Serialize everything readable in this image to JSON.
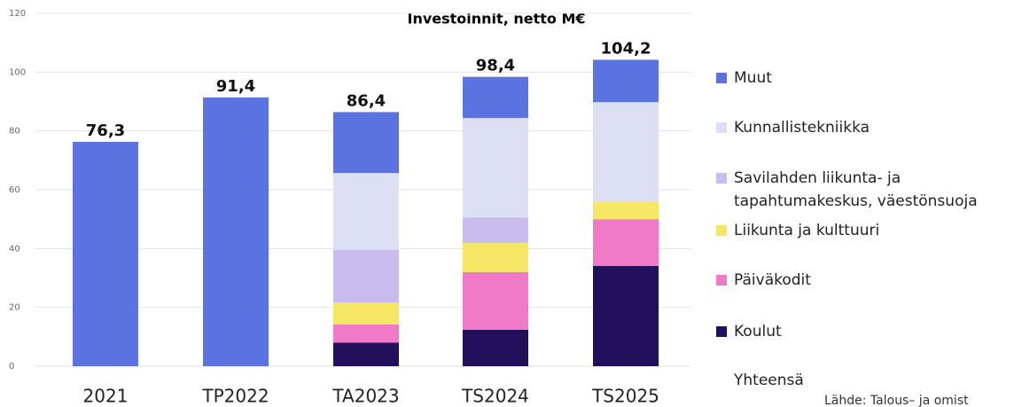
{
  "chart_data": {
    "type": "stacked_bar",
    "title": "Investoinnit, netto M€",
    "categories": [
      "2021",
      "TP2022",
      "TA2023",
      "TS2024",
      "TS2025"
    ],
    "series": [
      {
        "name": "Koulut",
        "color": "#23105c",
        "values": [
          null,
          null,
          8,
          12.4,
          34.1
        ]
      },
      {
        "name": "Päiväkodit",
        "color": "#f07ac8",
        "values": [
          null,
          null,
          6.2,
          19.6,
          15.9
        ]
      },
      {
        "name": "Liikunta ja kulttuuri",
        "color": "#f5e663",
        "values": [
          null,
          null,
          7.5,
          9.9,
          5.8
        ]
      },
      {
        "name": "Savilahden liikunta- ja tapahtumakeskus, väestönsuoja",
        "color": "#c9bdf0",
        "values": [
          null,
          null,
          17.8,
          8.7,
          null
        ]
      },
      {
        "name": "Kunnallistekniikka",
        "color": "#dde0f5",
        "values": [
          null,
          null,
          26.2,
          33.8,
          34
        ]
      },
      {
        "name": "Muut",
        "color": "#5b73e0",
        "values": [
          76.3,
          91.4,
          20.7,
          14,
          14.4
        ]
      }
    ],
    "totals": {
      "name": "Yhteensä",
      "values": [
        76.3,
        91.4,
        86.4,
        98.4,
        104.2
      ],
      "value_labels": [
        "76,3",
        "91,4",
        "86,4",
        "98,4",
        "104,2"
      ]
    },
    "ylim": [
      0,
      120
    ],
    "yticks": [
      0,
      20,
      40,
      60,
      80,
      100,
      120
    ],
    "grid": true,
    "source": "Lähde: Talous– ja omist"
  }
}
